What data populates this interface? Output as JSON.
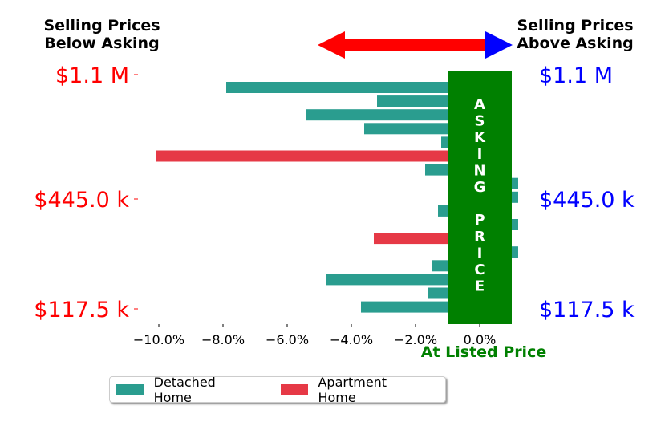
{
  "header": {
    "left_label": "Selling Prices\nBelow Asking",
    "right_label": "Selling Prices\nAbove Asking",
    "left_color": "#ff0000",
    "right_color": "#0000ff",
    "arrow_left_color": "#ff0000",
    "arrow_right_color": "#0000ff"
  },
  "asking_band": {
    "letters": [
      "A",
      "S",
      "K",
      "I",
      "N",
      "G",
      "",
      "P",
      "R",
      "I",
      "C",
      "E"
    ],
    "color": "#008000",
    "text_color": "#ffffff",
    "x_range": [
      -1.0,
      1.0
    ]
  },
  "bottom_label": {
    "text": "At Listed Price",
    "color": "#008000"
  },
  "legend": {
    "items": [
      {
        "label": "Detached Home",
        "color": "#2a9d8f"
      },
      {
        "label": "Apartment Home",
        "color": "#e63946"
      }
    ]
  },
  "chart_data": {
    "type": "bar",
    "orientation": "horizontal",
    "title": "",
    "xlabel": "",
    "ylabel": "",
    "xlim": [
      -11.0,
      1.2
    ],
    "x_ticks": [
      -10,
      -8,
      -6,
      -4,
      -2,
      0
    ],
    "x_tick_labels": [
      "−10.0%",
      "−8.0%",
      "−6.0%",
      "−4.0%",
      "−2.0%",
      "0.0%"
    ],
    "y_tick_labels_left": [
      "$1.1 M",
      "$445.0 k",
      "$117.5 k"
    ],
    "y_tick_labels_right": [
      "$1.1 M",
      "$445.0 k",
      "$117.5 k"
    ],
    "y_tick_rows": [
      0,
      9,
      17
    ],
    "grid": false,
    "legend_position": "bottom-left",
    "bars": [
      {
        "value": -7.9,
        "series": "Detached Home"
      },
      {
        "value": -3.2,
        "series": "Detached Home"
      },
      {
        "value": -5.4,
        "series": "Detached Home"
      },
      {
        "value": -3.6,
        "series": "Detached Home"
      },
      {
        "value": -1.2,
        "series": "Detached Home"
      },
      {
        "value": -10.1,
        "series": "Apartment Home"
      },
      {
        "value": -1.7,
        "series": "Detached Home"
      },
      {
        "value": 1.2,
        "series": "Detached Home"
      },
      {
        "value": 1.2,
        "series": "Detached Home"
      },
      {
        "value": -1.3,
        "series": "Detached Home"
      },
      {
        "value": 1.2,
        "series": "Detached Home"
      },
      {
        "value": -3.3,
        "series": "Apartment Home"
      },
      {
        "value": 1.2,
        "series": "Detached Home"
      },
      {
        "value": -1.5,
        "series": "Detached Home"
      },
      {
        "value": -4.8,
        "series": "Detached Home"
      },
      {
        "value": -1.6,
        "series": "Detached Home"
      },
      {
        "value": -3.7,
        "series": "Detached Home"
      }
    ]
  }
}
